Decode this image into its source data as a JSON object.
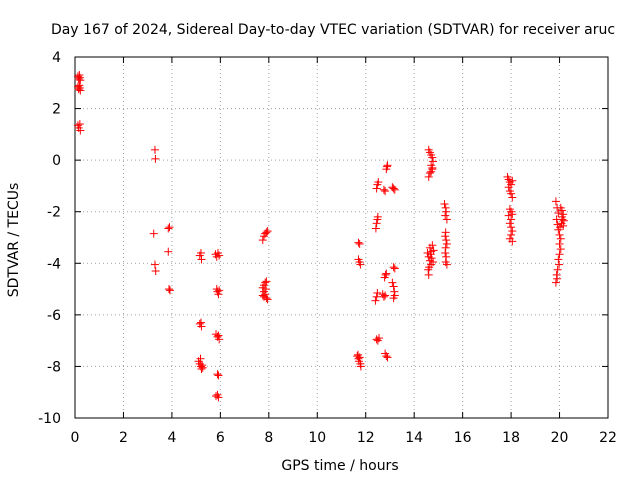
{
  "chart_data": {
    "type": "scatter",
    "title": "Day 167 of 2024, Sidereal Day-to-day VTEC variation (SDTVAR) for receiver aruc",
    "xlabel": "GPS time / hours",
    "ylabel": "SDTVAR / TECUs",
    "xlim": [
      0,
      22
    ],
    "ylim": [
      -10,
      4
    ],
    "xticks": [
      "0",
      "2",
      "4",
      "6",
      "8",
      "10",
      "12",
      "14",
      "16",
      "18",
      "20",
      "22"
    ],
    "yticks": [
      "4",
      "2",
      "0",
      "-2",
      "-4",
      "-6",
      "-8",
      "-10"
    ],
    "grid": true,
    "marker": "+",
    "color": "#ff0000",
    "series": [
      {
        "name": "SDTVAR",
        "points": [
          [
            0.12,
            3.25
          ],
          [
            0.15,
            3.15
          ],
          [
            0.18,
            3.3
          ],
          [
            0.2,
            3.2
          ],
          [
            0.22,
            3.1
          ],
          [
            0.12,
            2.85
          ],
          [
            0.15,
            2.75
          ],
          [
            0.18,
            2.9
          ],
          [
            0.2,
            2.8
          ],
          [
            0.22,
            2.7
          ],
          [
            0.12,
            1.35
          ],
          [
            0.15,
            1.25
          ],
          [
            0.2,
            1.4
          ],
          [
            0.22,
            1.15
          ],
          [
            3.3,
            0.4
          ],
          [
            3.32,
            0.05
          ],
          [
            3.25,
            -2.85
          ],
          [
            3.3,
            -4.05
          ],
          [
            3.33,
            -4.3
          ],
          [
            3.85,
            -2.65
          ],
          [
            3.9,
            -2.6
          ],
          [
            3.85,
            -3.55
          ],
          [
            3.88,
            -5.0
          ],
          [
            3.92,
            -5.05
          ],
          [
            5.15,
            -3.7
          ],
          [
            5.2,
            -3.6
          ],
          [
            5.22,
            -3.85
          ],
          [
            5.15,
            -6.35
          ],
          [
            5.2,
            -6.3
          ],
          [
            5.22,
            -6.45
          ],
          [
            5.1,
            -7.8
          ],
          [
            5.15,
            -7.9
          ],
          [
            5.18,
            -7.7
          ],
          [
            5.2,
            -8.0
          ],
          [
            5.22,
            -8.1
          ],
          [
            5.25,
            -7.95
          ],
          [
            5.27,
            -8.05
          ],
          [
            5.8,
            -3.65
          ],
          [
            5.85,
            -3.75
          ],
          [
            5.9,
            -3.6
          ],
          [
            5.95,
            -3.7
          ],
          [
            5.85,
            -5.0
          ],
          [
            5.88,
            -5.1
          ],
          [
            5.92,
            -5.2
          ],
          [
            5.95,
            -5.05
          ],
          [
            5.82,
            -6.75
          ],
          [
            5.88,
            -6.85
          ],
          [
            5.92,
            -6.8
          ],
          [
            5.95,
            -6.95
          ],
          [
            5.88,
            -8.3
          ],
          [
            5.92,
            -8.35
          ],
          [
            5.82,
            -9.15
          ],
          [
            5.88,
            -9.1
          ],
          [
            5.92,
            -9.2
          ],
          [
            7.75,
            -3.1
          ],
          [
            7.8,
            -2.95
          ],
          [
            7.85,
            -2.85
          ],
          [
            7.9,
            -2.8
          ],
          [
            7.95,
            -2.75
          ],
          [
            7.75,
            -4.95
          ],
          [
            7.8,
            -4.85
          ],
          [
            7.85,
            -4.75
          ],
          [
            7.9,
            -4.7
          ],
          [
            7.75,
            -5.25
          ],
          [
            7.8,
            -5.3
          ],
          [
            7.85,
            -5.2
          ],
          [
            7.9,
            -5.35
          ],
          [
            7.95,
            -5.4
          ],
          [
            7.8,
            -5.1
          ],
          [
            7.88,
            -5.0
          ],
          [
            11.7,
            -3.2
          ],
          [
            11.75,
            -3.25
          ],
          [
            11.7,
            -3.85
          ],
          [
            11.75,
            -3.95
          ],
          [
            11.78,
            -4.05
          ],
          [
            11.65,
            -7.6
          ],
          [
            11.7,
            -7.7
          ],
          [
            11.72,
            -7.8
          ],
          [
            11.75,
            -7.65
          ],
          [
            11.78,
            -7.9
          ],
          [
            11.8,
            -8.0
          ],
          [
            11.68,
            -7.55
          ],
          [
            12.4,
            -5.45
          ],
          [
            12.45,
            -5.3
          ],
          [
            12.48,
            -5.15
          ],
          [
            12.42,
            -2.65
          ],
          [
            12.45,
            -2.45
          ],
          [
            12.48,
            -2.3
          ],
          [
            12.5,
            -2.2
          ],
          [
            12.45,
            -1.1
          ],
          [
            12.48,
            -0.95
          ],
          [
            12.52,
            -0.85
          ],
          [
            12.45,
            -6.95
          ],
          [
            12.5,
            -7.0
          ],
          [
            12.55,
            -6.9
          ],
          [
            12.7,
            -5.2
          ],
          [
            12.75,
            -5.3
          ],
          [
            12.8,
            -5.25
          ],
          [
            12.78,
            -4.55
          ],
          [
            12.82,
            -4.45
          ],
          [
            12.85,
            -4.4
          ],
          [
            12.75,
            -1.15
          ],
          [
            12.8,
            -1.2
          ],
          [
            12.85,
            -0.35
          ],
          [
            12.88,
            -0.25
          ],
          [
            12.9,
            -0.2
          ],
          [
            12.8,
            -7.5
          ],
          [
            12.85,
            -7.6
          ],
          [
            12.9,
            -7.65
          ],
          [
            13.1,
            -1.05
          ],
          [
            13.15,
            -1.1
          ],
          [
            13.2,
            -1.15
          ],
          [
            13.15,
            -4.15
          ],
          [
            13.2,
            -4.2
          ],
          [
            13.1,
            -4.75
          ],
          [
            13.15,
            -4.9
          ],
          [
            13.18,
            -5.1
          ],
          [
            13.2,
            -5.25
          ],
          [
            13.15,
            -5.35
          ],
          [
            14.6,
            0.4
          ],
          [
            14.65,
            0.3
          ],
          [
            14.7,
            0.2
          ],
          [
            14.75,
            0.1
          ],
          [
            14.78,
            -0.05
          ],
          [
            14.7,
            -0.2
          ],
          [
            14.75,
            -0.35
          ],
          [
            14.65,
            -0.5
          ],
          [
            14.6,
            -0.65
          ],
          [
            14.7,
            -0.45
          ],
          [
            14.75,
            -0.3
          ],
          [
            14.55,
            -3.6
          ],
          [
            14.6,
            -3.75
          ],
          [
            14.65,
            -3.9
          ],
          [
            14.7,
            -4.05
          ],
          [
            14.58,
            -4.25
          ],
          [
            14.6,
            -4.45
          ],
          [
            14.65,
            -3.4
          ],
          [
            14.7,
            -3.55
          ],
          [
            14.75,
            -3.3
          ],
          [
            14.8,
            -3.5
          ],
          [
            14.72,
            -3.8
          ],
          [
            14.78,
            -3.95
          ],
          [
            14.62,
            -4.15
          ],
          [
            14.68,
            -3.65
          ],
          [
            15.25,
            -1.7
          ],
          [
            15.3,
            -1.85
          ],
          [
            15.32,
            -2.0
          ],
          [
            15.28,
            -2.15
          ],
          [
            15.35,
            -2.3
          ],
          [
            15.3,
            -2.8
          ],
          [
            15.28,
            -2.95
          ],
          [
            15.32,
            -3.1
          ],
          [
            15.35,
            -3.25
          ],
          [
            15.3,
            -3.4
          ],
          [
            15.28,
            -3.6
          ],
          [
            15.32,
            -3.75
          ],
          [
            15.3,
            -3.95
          ],
          [
            15.35,
            -4.05
          ],
          [
            17.85,
            -0.65
          ],
          [
            17.9,
            -0.75
          ],
          [
            17.95,
            -0.85
          ],
          [
            18.0,
            -0.95
          ],
          [
            18.05,
            -0.8
          ],
          [
            17.9,
            -1.05
          ],
          [
            17.95,
            -1.2
          ],
          [
            18.0,
            -1.3
          ],
          [
            18.05,
            -1.45
          ],
          [
            17.95,
            -1.9
          ],
          [
            18.0,
            -2.0
          ],
          [
            18.05,
            -2.1
          ],
          [
            17.9,
            -2.15
          ],
          [
            18.0,
            -2.3
          ],
          [
            17.95,
            -2.45
          ],
          [
            18.0,
            -2.6
          ],
          [
            18.05,
            -2.75
          ],
          [
            18.0,
            -2.9
          ],
          [
            17.95,
            -3.05
          ],
          [
            18.05,
            -3.15
          ],
          [
            19.85,
            -1.6
          ],
          [
            19.9,
            -1.85
          ],
          [
            19.95,
            -2.05
          ],
          [
            19.88,
            -2.3
          ],
          [
            19.92,
            -2.5
          ],
          [
            19.95,
            -2.7
          ],
          [
            20.0,
            -2.9
          ],
          [
            20.05,
            -3.05
          ],
          [
            20.0,
            -3.25
          ],
          [
            20.05,
            -3.45
          ],
          [
            20.0,
            -3.65
          ],
          [
            19.95,
            -3.85
          ],
          [
            19.98,
            -4.05
          ],
          [
            19.92,
            -4.25
          ],
          [
            19.88,
            -4.45
          ],
          [
            19.9,
            -4.6
          ],
          [
            19.85,
            -4.75
          ],
          [
            20.05,
            -1.85
          ],
          [
            20.1,
            -1.95
          ],
          [
            20.15,
            -2.1
          ],
          [
            20.12,
            -2.3
          ],
          [
            20.08,
            -2.45
          ],
          [
            20.15,
            -2.55
          ],
          [
            20.1,
            -2.2
          ],
          [
            20.02,
            -2.6
          ],
          [
            20.18,
            -2.35
          ]
        ]
      }
    ]
  }
}
